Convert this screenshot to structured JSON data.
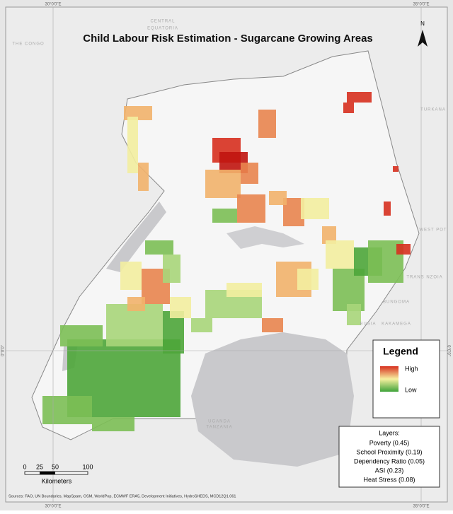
{
  "title": "Child Labour Risk Estimation - Sugarcane Growing Areas",
  "north_arrow": "N",
  "coordinates": {
    "west": "30°0'0\"E",
    "east": "35°0'0\"E",
    "equator": "0°0'0\""
  },
  "places": [
    "CENTRAL",
    "EQUATORIA",
    "THE CONGO",
    "TURKANA",
    "WEST POT",
    "TRANS NZOIA",
    "BUNGOMA",
    "BUSIA",
    "KAKAMEGA",
    "UGANDA",
    "TANZANIA"
  ],
  "legend": {
    "title": "Legend",
    "high": "High",
    "low": "Low"
  },
  "layers": {
    "heading": "Layers:",
    "items": [
      "Poverty (0.45)",
      "School Proximity (0.19)",
      "Dependency Ratio (0.05)",
      "ASI (0.23)",
      "Heat Stress (0.08)"
    ]
  },
  "scale_bar": {
    "labels": [
      "0",
      "25",
      "50",
      "100"
    ],
    "unit": "Kilometers"
  },
  "sources": "Sources: FAO, UN Boundaries, MapSpam, OSM, WorldPop, ECMWF ERA5, Development Initiatives, HydroSHEDS, MCD12Q1.061"
}
